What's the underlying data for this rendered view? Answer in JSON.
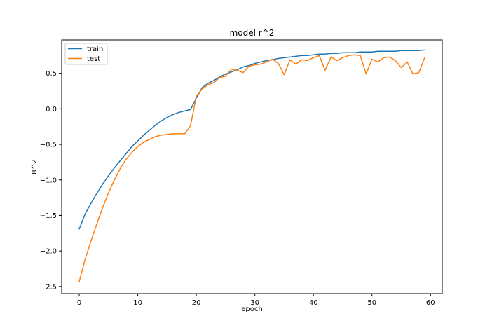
{
  "chart_data": {
    "type": "line",
    "title": "model r^2",
    "xlabel": "epoch",
    "ylabel": "R^2",
    "xlim": [
      -3,
      62
    ],
    "ylim": [
      -2.6,
      0.97
    ],
    "xticks": [
      0,
      10,
      20,
      30,
      40,
      50,
      60
    ],
    "yticks": [
      -2.5,
      -2.0,
      -1.5,
      -1.0,
      -0.5,
      0.0,
      0.5
    ],
    "xtick_labels": [
      "0",
      "10",
      "20",
      "30",
      "40",
      "50",
      "60"
    ],
    "ytick_labels": [
      "−2.5",
      "−2.0",
      "−1.5",
      "−1.0",
      "−0.5",
      "0.0",
      "0.5"
    ],
    "grid": false,
    "legend_position": "top-left",
    "x": [
      0,
      1,
      2,
      3,
      4,
      5,
      6,
      7,
      8,
      9,
      10,
      11,
      12,
      13,
      14,
      15,
      16,
      17,
      18,
      19,
      20,
      21,
      22,
      23,
      24,
      25,
      26,
      27,
      28,
      29,
      30,
      31,
      32,
      33,
      34,
      35,
      36,
      37,
      38,
      39,
      40,
      41,
      42,
      43,
      44,
      45,
      46,
      47,
      48,
      49,
      50,
      51,
      52,
      53,
      54,
      55,
      56,
      57,
      58,
      59
    ],
    "series": [
      {
        "name": "train",
        "color": "#1f77b4",
        "values": [
          -1.69,
          -1.48,
          -1.33,
          -1.19,
          -1.06,
          -0.94,
          -0.83,
          -0.73,
          -0.63,
          -0.53,
          -0.45,
          -0.37,
          -0.3,
          -0.23,
          -0.17,
          -0.12,
          -0.08,
          -0.05,
          -0.03,
          -0.01,
          0.15,
          0.3,
          0.36,
          0.4,
          0.45,
          0.49,
          0.52,
          0.55,
          0.59,
          0.61,
          0.64,
          0.66,
          0.68,
          0.69,
          0.71,
          0.72,
          0.73,
          0.74,
          0.75,
          0.75,
          0.76,
          0.77,
          0.77,
          0.78,
          0.78,
          0.79,
          0.79,
          0.79,
          0.8,
          0.8,
          0.8,
          0.81,
          0.81,
          0.81,
          0.81,
          0.82,
          0.82,
          0.82,
          0.82,
          0.83
        ]
      },
      {
        "name": "test",
        "color": "#ff7f0e",
        "values": [
          -2.43,
          -2.12,
          -1.86,
          -1.62,
          -1.39,
          -1.18,
          -1.0,
          -0.84,
          -0.71,
          -0.61,
          -0.53,
          -0.47,
          -0.43,
          -0.39,
          -0.37,
          -0.36,
          -0.35,
          -0.35,
          -0.35,
          -0.24,
          0.18,
          0.28,
          0.34,
          0.37,
          0.44,
          0.46,
          0.56,
          0.54,
          0.51,
          0.6,
          0.62,
          0.63,
          0.66,
          0.7,
          0.64,
          0.48,
          0.69,
          0.63,
          0.69,
          0.68,
          0.72,
          0.75,
          0.54,
          0.73,
          0.68,
          0.72,
          0.75,
          0.76,
          0.75,
          0.49,
          0.7,
          0.66,
          0.72,
          0.73,
          0.68,
          0.58,
          0.66,
          0.49,
          0.51,
          0.72
        ]
      }
    ]
  }
}
